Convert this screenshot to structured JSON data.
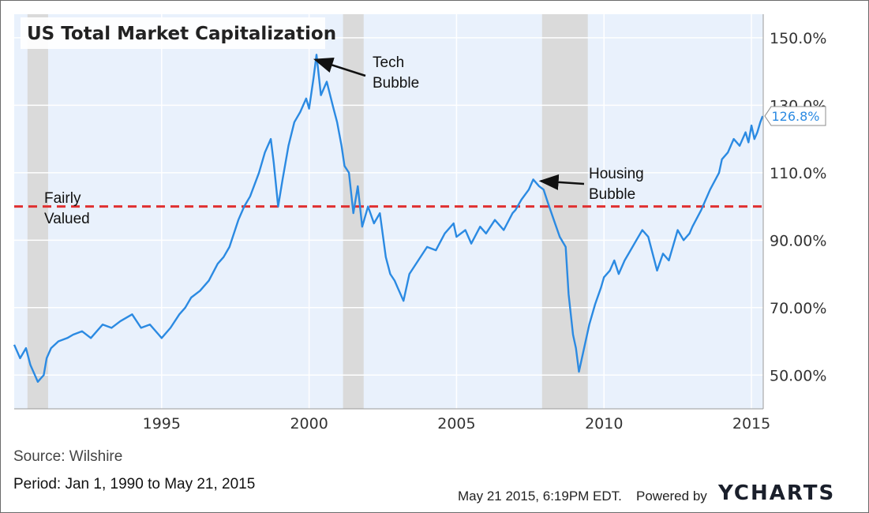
{
  "chart_data": {
    "type": "line",
    "title": "US Total Market Capitalization",
    "xlim": [
      1990.0,
      2015.4
    ],
    "ylim": [
      40,
      157
    ],
    "x_ticks": [
      {
        "value": 1995,
        "label": "1995"
      },
      {
        "value": 2000,
        "label": "2000"
      },
      {
        "value": 2005,
        "label": "2005"
      },
      {
        "value": 2010,
        "label": "2010"
      },
      {
        "value": 2015,
        "label": "2015"
      }
    ],
    "y_ticks": [
      {
        "value": 50,
        "label": "50.00%"
      },
      {
        "value": 70,
        "label": "70.00%"
      },
      {
        "value": 90,
        "label": "90.00%"
      },
      {
        "value": 110,
        "label": "110.0%"
      },
      {
        "value": 130,
        "label": "130.0%"
      },
      {
        "value": 150,
        "label": "150.0%"
      }
    ],
    "recessions": [
      [
        1990.45,
        1991.15
      ],
      [
        2001.15,
        2001.85
      ],
      [
        2007.9,
        2009.45
      ]
    ],
    "reference_line": {
      "value": 100,
      "color": "#e03030"
    },
    "last_value_label": "126.8%",
    "series": [
      {
        "name": "US Total Market Capitalization",
        "color": "#2b8ae2",
        "x": [
          1990.0,
          1990.2,
          1990.4,
          1990.55,
          1990.7,
          1990.8,
          1990.9,
          1991.0,
          1991.1,
          1991.25,
          1991.5,
          1991.8,
          1992.0,
          1992.3,
          1992.6,
          1993.0,
          1993.3,
          1993.6,
          1994.0,
          1994.3,
          1994.6,
          1994.9,
          1995.0,
          1995.3,
          1995.6,
          1995.8,
          1996.0,
          1996.3,
          1996.6,
          1996.9,
          1997.1,
          1997.3,
          1997.6,
          1997.8,
          1998.0,
          1998.3,
          1998.5,
          1998.7,
          1998.8,
          1998.95,
          1999.1,
          1999.3,
          1999.5,
          1999.7,
          1999.9,
          2000.0,
          2000.15,
          2000.25,
          2000.4,
          2000.6,
          2000.8,
          2000.95,
          2001.1,
          2001.2,
          2001.35,
          2001.5,
          2001.65,
          2001.8,
          2002.0,
          2002.2,
          2002.4,
          2002.6,
          2002.75,
          2002.9,
          2003.0,
          2003.2,
          2003.4,
          2003.7,
          2004.0,
          2004.3,
          2004.6,
          2004.9,
          2005.0,
          2005.3,
          2005.5,
          2005.8,
          2006.0,
          2006.3,
          2006.6,
          2006.9,
          2007.0,
          2007.2,
          2007.45,
          2007.6,
          2007.8,
          2007.95,
          2008.1,
          2008.3,
          2008.5,
          2008.7,
          2008.8,
          2008.95,
          2009.05,
          2009.15,
          2009.3,
          2009.5,
          2009.7,
          2009.9,
          2010.0,
          2010.2,
          2010.35,
          2010.5,
          2010.7,
          2010.9,
          2011.1,
          2011.3,
          2011.5,
          2011.65,
          2011.8,
          2012.0,
          2012.2,
          2012.4,
          2012.5,
          2012.7,
          2012.9,
          2013.0,
          2013.3,
          2013.6,
          2013.9,
          2014.0,
          2014.2,
          2014.4,
          2014.6,
          2014.8,
          2014.9,
          2015.0,
          2015.1,
          2015.2,
          2015.3,
          2015.38
        ],
        "values": [
          59,
          55,
          58,
          53,
          50,
          48,
          49,
          50,
          55,
          58,
          60,
          61,
          62,
          63,
          61,
          65,
          64,
          66,
          68,
          64,
          65,
          62,
          61,
          64,
          68,
          70,
          73,
          75,
          78,
          83,
          85,
          88,
          96,
          100,
          103,
          110,
          116,
          120,
          113,
          100,
          108,
          118,
          125,
          128,
          132,
          129,
          138,
          145,
          133,
          137,
          130,
          125,
          118,
          112,
          110,
          98,
          106,
          94,
          100,
          95,
          98,
          85,
          80,
          78,
          76,
          72,
          80,
          84,
          88,
          87,
          92,
          95,
          91,
          93,
          89,
          94,
          92,
          96,
          93,
          98,
          99,
          102,
          105,
          108,
          106,
          105,
          101,
          96,
          91,
          88,
          74,
          62,
          58,
          51,
          57,
          65,
          71,
          76,
          79,
          81,
          84,
          80,
          84,
          87,
          90,
          93,
          91,
          86,
          81,
          86,
          84,
          90,
          93,
          90,
          92,
          94,
          99,
          105,
          110,
          114,
          116,
          120,
          118,
          122,
          119,
          124,
          120,
          122,
          125,
          126.8
        ]
      }
    ],
    "annotations": [
      {
        "lines": [
          "Tech",
          "Bubble"
        ],
        "arrow_to": [
          2000.1,
          144
        ]
      },
      {
        "lines": [
          "Housing",
          "Bubble"
        ],
        "arrow_to": [
          2007.75,
          108
        ]
      },
      {
        "lines": [
          "Fairly",
          "Valued"
        ]
      }
    ]
  },
  "footer": {
    "source": "Source: Wilshire",
    "period": "Period: Jan 1, 1990 to May 21, 2015",
    "timestamp": "May 21 2015, 6:19PM EDT.",
    "powered_by": "Powered by",
    "logo": "YCHARTS"
  }
}
